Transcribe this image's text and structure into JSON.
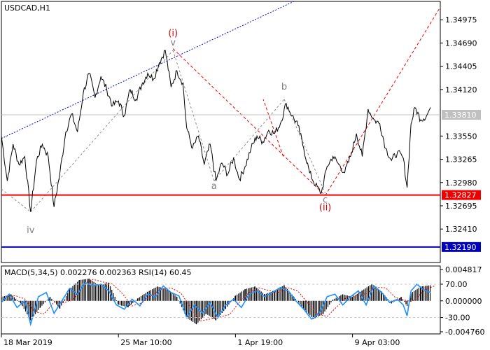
{
  "chart_data": {
    "type": "line",
    "symbol_timeframe": "USDCAD,H1",
    "price_axis": {
      "range": [
        1.32,
        1.352
      ],
      "ticks": [
        "1.34975",
        "1.34690",
        "1.34405",
        "1.34120",
        "1.33550",
        "1.33265",
        "1.32980",
        "1.32695",
        "1.32410"
      ]
    },
    "time_axis": {
      "ticks": [
        "18 Mar 2019",
        "25 Mar 10:00",
        "1 Apr 19:00",
        "9 Apr 03:00"
      ]
    },
    "current_price": {
      "value": 1.3381,
      "label": "1.33810",
      "color": "#c0c0c0"
    },
    "levels": [
      {
        "value": 1.32827,
        "label": "1.32827",
        "color": "#ee0000"
      },
      {
        "value": 1.3219,
        "label": "1.32190",
        "color": "#0000bb"
      }
    ],
    "price_path": [
      {
        "bar": 0,
        "price": 1.3355
      },
      {
        "bar": 6,
        "price": 1.33
      },
      {
        "bar": 12,
        "price": 1.3345
      },
      {
        "bar": 18,
        "price": 1.332
      },
      {
        "bar": 24,
        "price": 1.333
      },
      {
        "bar": 30,
        "price": 1.3262
      },
      {
        "bar": 36,
        "price": 1.3325
      },
      {
        "bar": 42,
        "price": 1.3345
      },
      {
        "bar": 48,
        "price": 1.333
      },
      {
        "bar": 54,
        "price": 1.3268
      },
      {
        "bar": 60,
        "price": 1.331
      },
      {
        "bar": 66,
        "price": 1.336
      },
      {
        "bar": 72,
        "price": 1.3382
      },
      {
        "bar": 78,
        "price": 1.336
      },
      {
        "bar": 84,
        "price": 1.3408
      },
      {
        "bar": 90,
        "price": 1.3432
      },
      {
        "bar": 96,
        "price": 1.3402
      },
      {
        "bar": 102,
        "price": 1.3428
      },
      {
        "bar": 108,
        "price": 1.3412
      },
      {
        "bar": 114,
        "price": 1.3392
      },
      {
        "bar": 120,
        "price": 1.3398
      },
      {
        "bar": 126,
        "price": 1.338
      },
      {
        "bar": 132,
        "price": 1.3412
      },
      {
        "bar": 138,
        "price": 1.34
      },
      {
        "bar": 144,
        "price": 1.3418
      },
      {
        "bar": 150,
        "price": 1.3432
      },
      {
        "bar": 156,
        "price": 1.3425
      },
      {
        "bar": 162,
        "price": 1.3445
      },
      {
        "bar": 168,
        "price": 1.346
      },
      {
        "bar": 174,
        "price": 1.3415
      },
      {
        "bar": 180,
        "price": 1.3435
      },
      {
        "bar": 186,
        "price": 1.342
      },
      {
        "bar": 190,
        "price": 1.3365
      },
      {
        "bar": 196,
        "price": 1.334
      },
      {
        "bar": 202,
        "price": 1.3355
      },
      {
        "bar": 208,
        "price": 1.332
      },
      {
        "bar": 214,
        "price": 1.3345
      },
      {
        "bar": 220,
        "price": 1.33
      },
      {
        "bar": 226,
        "price": 1.3322
      },
      {
        "bar": 232,
        "price": 1.3308
      },
      {
        "bar": 238,
        "price": 1.3328
      },
      {
        "bar": 244,
        "price": 1.3302
      },
      {
        "bar": 250,
        "price": 1.3318
      },
      {
        "bar": 256,
        "price": 1.334
      },
      {
        "bar": 262,
        "price": 1.3355
      },
      {
        "bar": 268,
        "price": 1.3348
      },
      {
        "bar": 274,
        "price": 1.3362
      },
      {
        "bar": 280,
        "price": 1.3358
      },
      {
        "bar": 286,
        "price": 1.337
      },
      {
        "bar": 292,
        "price": 1.3395
      },
      {
        "bar": 298,
        "price": 1.338
      },
      {
        "bar": 304,
        "price": 1.3368
      },
      {
        "bar": 310,
        "price": 1.334
      },
      {
        "bar": 316,
        "price": 1.331
      },
      {
        "bar": 322,
        "price": 1.3295
      },
      {
        "bar": 328,
        "price": 1.3285
      },
      {
        "bar": 334,
        "price": 1.3318
      },
      {
        "bar": 340,
        "price": 1.333
      },
      {
        "bar": 346,
        "price": 1.332
      },
      {
        "bar": 352,
        "price": 1.331
      },
      {
        "bar": 358,
        "price": 1.333
      },
      {
        "bar": 364,
        "price": 1.3358
      },
      {
        "bar": 370,
        "price": 1.333
      },
      {
        "bar": 376,
        "price": 1.3388
      },
      {
        "bar": 382,
        "price": 1.3375
      },
      {
        "bar": 388,
        "price": 1.337
      },
      {
        "bar": 394,
        "price": 1.334
      },
      {
        "bar": 400,
        "price": 1.3325
      },
      {
        "bar": 406,
        "price": 1.3335
      },
      {
        "bar": 412,
        "price": 1.3328
      },
      {
        "bar": 416,
        "price": 1.3292
      },
      {
        "bar": 420,
        "price": 1.337
      },
      {
        "bar": 424,
        "price": 1.339
      },
      {
        "bar": 430,
        "price": 1.3375
      },
      {
        "bar": 436,
        "price": 1.338
      },
      {
        "bar": 440,
        "price": 1.339
      }
    ],
    "wave_labels": [
      {
        "text": "(i)",
        "bar": 176,
        "price": 1.34775,
        "color": "#cc0000"
      },
      {
        "text": "v",
        "bar": 176,
        "price": 1.3466,
        "color": "#7f7f7f"
      },
      {
        "text": "b",
        "bar": 290,
        "price": 1.3412,
        "color": "#7f7f7f"
      },
      {
        "text": "a",
        "bar": 218,
        "price": 1.329,
        "color": "#7f7f7f"
      },
      {
        "text": "c",
        "bar": 332,
        "price": 1.32735,
        "color": "#7f7f7f"
      },
      {
        "text": "(ii)",
        "bar": 332,
        "price": 1.3264,
        "color": "#cc0000"
      },
      {
        "text": "iv",
        "bar": 30,
        "price": 1.3236,
        "color": "#7f7f7f"
      }
    ],
    "indicator": {
      "label": "MACD(5,34,5) 0.002276 0.002363 RSI(14) 60.45",
      "macd_ticks": [
        "0.004817",
        "0.000000",
        "-0.004760"
      ],
      "rsi_ticks": [
        "70.00",
        "-30.00"
      ],
      "histogram": [
        {
          "bar": 0,
          "value": 0.0006
        },
        {
          "bar": 10,
          "value": 0.001
        },
        {
          "bar": 20,
          "value": -0.0004
        },
        {
          "bar": 30,
          "value": -0.003
        },
        {
          "bar": 40,
          "value": -0.001
        },
        {
          "bar": 50,
          "value": 0.0006
        },
        {
          "bar": 60,
          "value": -0.0012
        },
        {
          "bar": 70,
          "value": 0.0018
        },
        {
          "bar": 80,
          "value": 0.0032
        },
        {
          "bar": 90,
          "value": 0.0034
        },
        {
          "bar": 100,
          "value": 0.0024
        },
        {
          "bar": 110,
          "value": 0.0028
        },
        {
          "bar": 120,
          "value": -0.0006
        },
        {
          "bar": 130,
          "value": -0.001
        },
        {
          "bar": 140,
          "value": 0.0004
        },
        {
          "bar": 150,
          "value": 0.0014
        },
        {
          "bar": 160,
          "value": 0.0022
        },
        {
          "bar": 170,
          "value": 0.0018
        },
        {
          "bar": 180,
          "value": 0.0006
        },
        {
          "bar": 190,
          "value": -0.0026
        },
        {
          "bar": 200,
          "value": -0.0036
        },
        {
          "bar": 210,
          "value": -0.002
        },
        {
          "bar": 220,
          "value": -0.003
        },
        {
          "bar": 230,
          "value": -0.0012
        },
        {
          "bar": 240,
          "value": 0.0008
        },
        {
          "bar": 250,
          "value": 0.0018
        },
        {
          "bar": 260,
          "value": 0.0022
        },
        {
          "bar": 270,
          "value": 0.001
        },
        {
          "bar": 280,
          "value": 0.0016
        },
        {
          "bar": 290,
          "value": 0.0024
        },
        {
          "bar": 300,
          "value": 0.0006
        },
        {
          "bar": 310,
          "value": -0.0012
        },
        {
          "bar": 320,
          "value": -0.0028
        },
        {
          "bar": 330,
          "value": -0.002
        },
        {
          "bar": 340,
          "value": 0.0002
        },
        {
          "bar": 350,
          "value": 0.001
        },
        {
          "bar": 360,
          "value": 0.0006
        },
        {
          "bar": 370,
          "value": 0.0016
        },
        {
          "bar": 380,
          "value": 0.0026
        },
        {
          "bar": 390,
          "value": 0.0014
        },
        {
          "bar": 400,
          "value": -0.0004
        },
        {
          "bar": 410,
          "value": 0.0006
        },
        {
          "bar": 416,
          "value": -0.0008
        },
        {
          "bar": 420,
          "value": 0.0012
        },
        {
          "bar": 430,
          "value": 0.0022
        },
        {
          "bar": 440,
          "value": 0.0024
        }
      ],
      "rsi": [
        {
          "bar": 0,
          "value": 48
        },
        {
          "bar": 8,
          "value": 58
        },
        {
          "bar": 16,
          "value": 42
        },
        {
          "bar": 24,
          "value": 50
        },
        {
          "bar": 30,
          "value": 22
        },
        {
          "bar": 38,
          "value": 55
        },
        {
          "bar": 46,
          "value": 60
        },
        {
          "bar": 54,
          "value": 35
        },
        {
          "bar": 62,
          "value": 50
        },
        {
          "bar": 70,
          "value": 65
        },
        {
          "bar": 78,
          "value": 58
        },
        {
          "bar": 86,
          "value": 72
        },
        {
          "bar": 94,
          "value": 68
        },
        {
          "bar": 102,
          "value": 70
        },
        {
          "bar": 110,
          "value": 62
        },
        {
          "bar": 118,
          "value": 45
        },
        {
          "bar": 126,
          "value": 40
        },
        {
          "bar": 134,
          "value": 52
        },
        {
          "bar": 142,
          "value": 44
        },
        {
          "bar": 150,
          "value": 58
        },
        {
          "bar": 158,
          "value": 55
        },
        {
          "bar": 166,
          "value": 68
        },
        {
          "bar": 174,
          "value": 60
        },
        {
          "bar": 182,
          "value": 56
        },
        {
          "bar": 190,
          "value": 30
        },
        {
          "bar": 198,
          "value": 45
        },
        {
          "bar": 206,
          "value": 35
        },
        {
          "bar": 214,
          "value": 48
        },
        {
          "bar": 222,
          "value": 30
        },
        {
          "bar": 230,
          "value": 45
        },
        {
          "bar": 238,
          "value": 52
        },
        {
          "bar": 246,
          "value": 42
        },
        {
          "bar": 254,
          "value": 58
        },
        {
          "bar": 262,
          "value": 62
        },
        {
          "bar": 270,
          "value": 55
        },
        {
          "bar": 278,
          "value": 60
        },
        {
          "bar": 286,
          "value": 66
        },
        {
          "bar": 294,
          "value": 62
        },
        {
          "bar": 302,
          "value": 50
        },
        {
          "bar": 310,
          "value": 40
        },
        {
          "bar": 318,
          "value": 28
        },
        {
          "bar": 326,
          "value": 35
        },
        {
          "bar": 334,
          "value": 55
        },
        {
          "bar": 342,
          "value": 58
        },
        {
          "bar": 350,
          "value": 45
        },
        {
          "bar": 358,
          "value": 55
        },
        {
          "bar": 366,
          "value": 62
        },
        {
          "bar": 374,
          "value": 45
        },
        {
          "bar": 382,
          "value": 68
        },
        {
          "bar": 390,
          "value": 60
        },
        {
          "bar": 398,
          "value": 48
        },
        {
          "bar": 406,
          "value": 52
        },
        {
          "bar": 412,
          "value": 45
        },
        {
          "bar": 416,
          "value": 32
        },
        {
          "bar": 420,
          "value": 62
        },
        {
          "bar": 426,
          "value": 70
        },
        {
          "bar": 432,
          "value": 64
        },
        {
          "bar": 440,
          "value": 60
        }
      ]
    },
    "bar_count": 450,
    "time_tick_bars": [
      0,
      120,
      240,
      360
    ]
  }
}
